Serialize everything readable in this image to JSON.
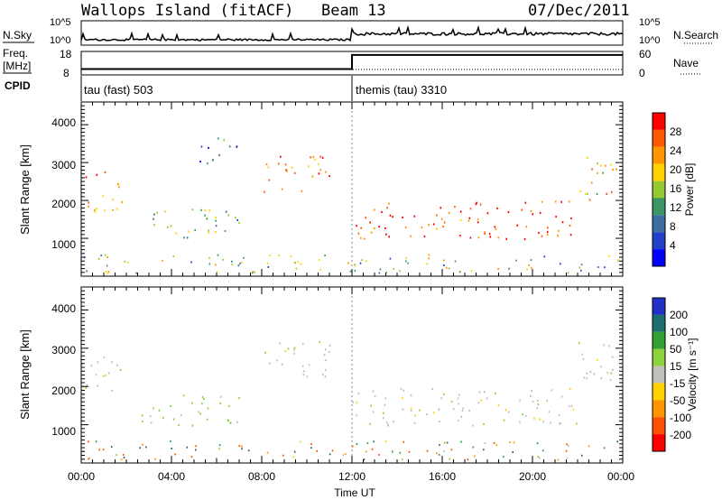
{
  "header": {
    "station": "Wallops Island (fitACF)",
    "beam": "Beam 13",
    "date": "07/Dec/2011"
  },
  "strip": {
    "nsky_label": "N.Sky",
    "nsky_ticks": [
      "10^5",
      "10^0"
    ],
    "nsearch_label": "N.Search",
    "freq_label_line1": "Freq.",
    "freq_label_line2": "[MHz]",
    "freq_ticks": [
      "18",
      "8"
    ],
    "nave_label": "Nave",
    "nave_ticks": [
      "60",
      "0"
    ],
    "cpid_label": "CPID",
    "cpid_segments": [
      "tau (fast) 503",
      "themis (tau) 3310"
    ]
  },
  "power_colorbar": {
    "label": "Power [dB]",
    "ticks": [
      "28",
      "24",
      "20",
      "16",
      "12",
      "8",
      "4"
    ],
    "colors": [
      "#ff0000",
      "#ff5a00",
      "#ff9600",
      "#ffd200",
      "#96c832",
      "#3c9664",
      "#3c6ea0",
      "#2040c8",
      "#0000ff"
    ]
  },
  "velocity_colorbar": {
    "label": "Velocity [m s⁻¹]",
    "ticks": [
      "200",
      "100",
      "50",
      "15",
      "-15",
      "-50",
      "-100",
      "-200"
    ],
    "colors": [
      "#2030c8",
      "#1e6e6e",
      "#32a032",
      "#8cd23c",
      "#c0c0b8",
      "#ffd200",
      "#ff9600",
      "#ff5000",
      "#ff0000"
    ]
  },
  "axes": {
    "ylabel": "Slant Range [km]",
    "yticks": [
      "4000",
      "3000",
      "2000",
      "1000"
    ],
    "xticks": [
      "00:00",
      "04:00",
      "08:00",
      "12:00",
      "16:00",
      "20:00",
      "00:00"
    ],
    "xlabel": "Time UT"
  },
  "chart_data": {
    "type": "heatmap",
    "title": "Wallops Island (fitACF)",
    "xlabel": "Time UT",
    "ylabel": "Slant Range [km]",
    "xlim_hours": [
      0,
      24
    ],
    "ylim": [
      0,
      4600
    ],
    "panels": [
      {
        "quantity": "Power",
        "unit": "dB",
        "color_range": [
          0,
          32
        ],
        "echo_bands": [
          {
            "t0": 0.0,
            "t1": 1.8,
            "r0": 1700,
            "r1": 2800,
            "value": 22
          },
          {
            "t0": 2.5,
            "t1": 7.0,
            "r0": 1000,
            "r1": 1800,
            "value": 14
          },
          {
            "t0": 5.0,
            "t1": 7.0,
            "r0": 3000,
            "r1": 3700,
            "value": 10
          },
          {
            "t0": 8.0,
            "t1": 11.0,
            "r0": 2200,
            "r1": 3200,
            "value": 24
          },
          {
            "t0": 12.0,
            "t1": 22.0,
            "r0": 1000,
            "r1": 2000,
            "value": 28
          },
          {
            "t0": 22.0,
            "t1": 23.7,
            "r0": 2000,
            "r1": 3300,
            "value": 20
          }
        ]
      },
      {
        "quantity": "Velocity",
        "unit": "m s-1",
        "color_range": [
          -200,
          200
        ],
        "echo_bands": [
          {
            "t0": 0.0,
            "t1": 1.8,
            "r0": 1700,
            "r1": 2800,
            "value": 0
          },
          {
            "t0": 2.5,
            "t1": 7.0,
            "r0": 1000,
            "r1": 1800,
            "value": 30
          },
          {
            "t0": 8.0,
            "t1": 11.0,
            "r0": 2200,
            "r1": 3200,
            "value": 0
          },
          {
            "t0": 12.0,
            "t1": 22.0,
            "r0": 1000,
            "r1": 2000,
            "value": 0
          },
          {
            "t0": 22.0,
            "t1": 23.7,
            "r0": 2000,
            "r1": 3300,
            "value": 0
          }
        ]
      }
    ],
    "frequency_steps": [
      {
        "t0": 0.0,
        "t1": 12.0,
        "mhz": 10.5
      },
      {
        "t0": 12.0,
        "t1": 24.0,
        "mhz": 16.5
      }
    ],
    "cpid_changes": [
      {
        "t": 0.0,
        "name": "tau (fast)",
        "id": 503
      },
      {
        "t": 12.0,
        "name": "themis (tau)",
        "id": 3310
      }
    ]
  }
}
